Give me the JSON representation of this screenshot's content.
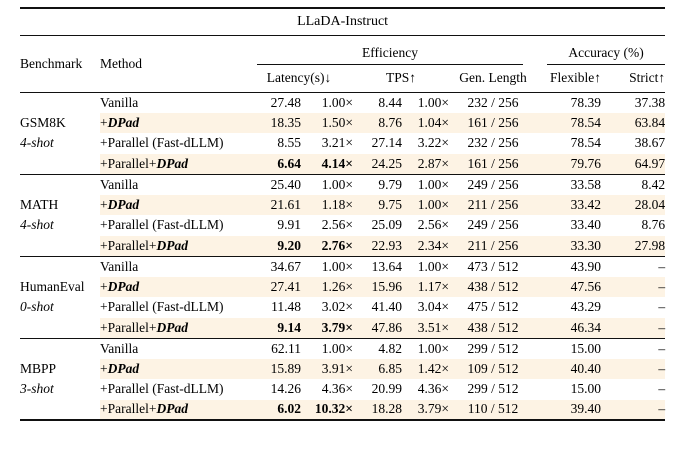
{
  "title": "LLaDA-Instruct",
  "colors": {
    "highlight": "#fdf3e4",
    "rule": "#111111",
    "text": "#000000"
  },
  "header": {
    "benchmark": "Benchmark",
    "method": "Method",
    "efficiency": "Efficiency",
    "accuracy": "Accuracy (%)",
    "latency": "Latency(s)↓",
    "tps": "TPS↑",
    "gen_length": "Gen. Length",
    "flexible": "Flexible↑",
    "strict": "Strict↑"
  },
  "chart_data": {
    "type": "table",
    "title": "LLaDA-Instruct",
    "column_groups": [
      "Efficiency",
      "Accuracy (%)"
    ],
    "columns": [
      "Benchmark",
      "Method",
      "Latency(s)",
      "Latency speedup",
      "TPS",
      "TPS speedup",
      "Gen. Length",
      "Flexible",
      "Strict"
    ]
  },
  "groups": [
    {
      "benchmark": "GSM8K",
      "shots": "4-shot",
      "rows": [
        {
          "method_prefix": "Vanilla",
          "method_emph": "",
          "highlight": false,
          "bold": [],
          "values": [
            "27.48",
            "1.00×",
            "8.44",
            "1.00×",
            "232 / 256",
            "78.39",
            "37.38"
          ]
        },
        {
          "method_prefix": "+",
          "method_emph": "DPad",
          "highlight": true,
          "bold": [],
          "values": [
            "18.35",
            "1.50×",
            "8.76",
            "1.04×",
            "161 / 256",
            "78.54",
            "63.84"
          ]
        },
        {
          "method_prefix": "+Parallel (Fast-dLLM)",
          "method_emph": "",
          "highlight": false,
          "bold": [],
          "values": [
            "8.55",
            "3.21×",
            "27.14",
            "3.22×",
            "232 / 256",
            "78.54",
            "38.67"
          ]
        },
        {
          "method_prefix": "+Parallel+",
          "method_emph": "DPad",
          "highlight": true,
          "bold": [
            0,
            1
          ],
          "values": [
            "6.64",
            "4.14×",
            "24.25",
            "2.87×",
            "161 / 256",
            "79.76",
            "64.97"
          ]
        }
      ]
    },
    {
      "benchmark": "MATH",
      "shots": "4-shot",
      "rows": [
        {
          "method_prefix": "Vanilla",
          "method_emph": "",
          "highlight": false,
          "bold": [],
          "values": [
            "25.40",
            "1.00×",
            "9.79",
            "1.00×",
            "249 / 256",
            "33.58",
            "8.42"
          ]
        },
        {
          "method_prefix": "+",
          "method_emph": "DPad",
          "highlight": true,
          "bold": [],
          "values": [
            "21.61",
            "1.18×",
            "9.75",
            "1.00×",
            "211 / 256",
            "33.42",
            "28.04"
          ]
        },
        {
          "method_prefix": "+Parallel (Fast-dLLM)",
          "method_emph": "",
          "highlight": false,
          "bold": [],
          "values": [
            "9.91",
            "2.56×",
            "25.09",
            "2.56×",
            "249 / 256",
            "33.40",
            "8.76"
          ]
        },
        {
          "method_prefix": "+Parallel+",
          "method_emph": "DPad",
          "highlight": true,
          "bold": [
            0,
            1
          ],
          "values": [
            "9.20",
            "2.76×",
            "22.93",
            "2.34×",
            "211 / 256",
            "33.30",
            "27.98"
          ]
        }
      ]
    },
    {
      "benchmark": "HumanEval",
      "shots": "0-shot",
      "rows": [
        {
          "method_prefix": "Vanilla",
          "method_emph": "",
          "highlight": false,
          "bold": [],
          "values": [
            "34.67",
            "1.00×",
            "13.64",
            "1.00×",
            "473 / 512",
            "43.90",
            "–"
          ]
        },
        {
          "method_prefix": "+",
          "method_emph": "DPad",
          "highlight": true,
          "bold": [],
          "values": [
            "27.41",
            "1.26×",
            "15.96",
            "1.17×",
            "438 / 512",
            "47.56",
            "–"
          ]
        },
        {
          "method_prefix": "+Parallel (Fast-dLLM)",
          "method_emph": "",
          "highlight": false,
          "bold": [],
          "values": [
            "11.48",
            "3.02×",
            "41.40",
            "3.04×",
            "475 / 512",
            "43.29",
            "–"
          ]
        },
        {
          "method_prefix": "+Parallel+",
          "method_emph": "DPad",
          "highlight": true,
          "bold": [
            0,
            1
          ],
          "values": [
            "9.14",
            "3.79×",
            "47.86",
            "3.51×",
            "438 / 512",
            "46.34",
            "–"
          ]
        }
      ]
    },
    {
      "benchmark": "MBPP",
      "shots": "3-shot",
      "rows": [
        {
          "method_prefix": "Vanilla",
          "method_emph": "",
          "highlight": false,
          "bold": [],
          "values": [
            "62.11",
            "1.00×",
            "4.82",
            "1.00×",
            "299 / 512",
            "15.00",
            "–"
          ]
        },
        {
          "method_prefix": "+",
          "method_emph": "DPad",
          "highlight": true,
          "bold": [],
          "values": [
            "15.89",
            "3.91×",
            "6.85",
            "1.42×",
            "109 / 512",
            "40.40",
            "–"
          ]
        },
        {
          "method_prefix": "+Parallel (Fast-dLLM)",
          "method_emph": "",
          "highlight": false,
          "bold": [],
          "values": [
            "14.26",
            "4.36×",
            "20.99",
            "4.36×",
            "299 / 512",
            "15.00",
            "–"
          ]
        },
        {
          "method_prefix": "+Parallel+",
          "method_emph": "DPad",
          "highlight": true,
          "bold": [
            0,
            1
          ],
          "values": [
            "6.02",
            "10.32×",
            "18.28",
            "3.79×",
            "110 / 512",
            "39.40",
            "–"
          ]
        }
      ]
    }
  ]
}
